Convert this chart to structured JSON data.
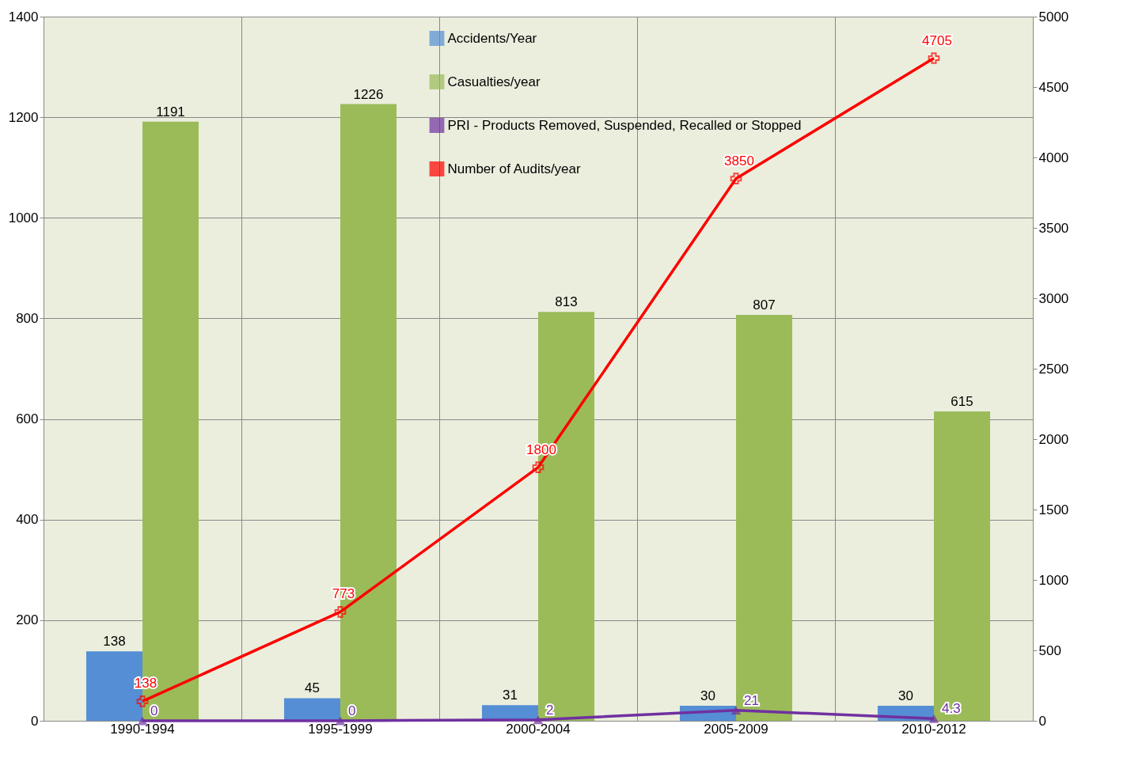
{
  "chart_data": {
    "type": "bar",
    "categories": [
      "1990-1994",
      "1995-1999",
      "2000-2004",
      "2005-2009",
      "2010-2012"
    ],
    "series": [
      {
        "name": "Accidents/Year",
        "color": "#558ed5",
        "values": [
          138,
          45,
          31,
          30,
          30
        ]
      },
      {
        "name": "Casualties/year",
        "color": "#9bbb59",
        "values": [
          1191,
          1226,
          813,
          807,
          615
        ]
      },
      {
        "name": "PRI - Products Removed, Suspended, Recalled or Stopped",
        "type": "line",
        "color": "#7030a0",
        "marker": "triangle",
        "values": [
          0,
          0,
          2,
          21,
          4.3
        ]
      },
      {
        "name": "Number of Audits/year",
        "type": "line",
        "axis": "y2",
        "color": "#ff0000",
        "marker": "cross",
        "values": [
          138,
          773,
          1800,
          3850,
          4705
        ]
      }
    ],
    "ylim": [
      0,
      1400
    ],
    "yticks": [
      0,
      200,
      400,
      600,
      800,
      1000,
      1200,
      1400
    ],
    "y2lim": [
      0,
      5000
    ],
    "y2ticks": [
      0,
      500,
      1000,
      1500,
      2000,
      2500,
      3000,
      3500,
      4000,
      4500,
      5000
    ],
    "grid": true,
    "legend": "top",
    "data_labels": true
  }
}
